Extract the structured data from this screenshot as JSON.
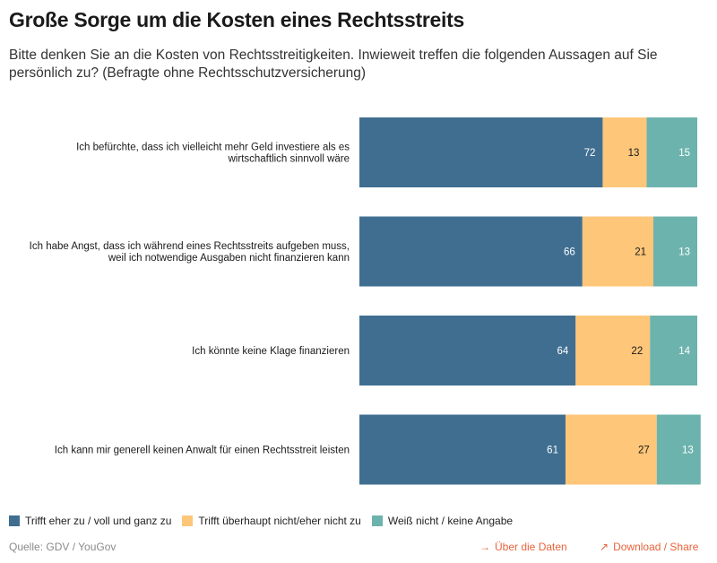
{
  "title": "Große Sorge um die Kosten eines Rechtsstreits",
  "subtitle": "Bitte denken Sie an die Kosten von Rechtsstreitigkeiten. Inwieweit treffen die folgenden Aussagen auf Sie persönlich zu? (Befragte ohne Rechtsschutzversicherung)",
  "source": "Quelle: GDV / YouGov",
  "links": {
    "data_label": "Über die Daten",
    "data_icon": "→",
    "download_label": "Download / Share",
    "download_icon": "↗"
  },
  "colors": {
    "series1": "#3f6e91",
    "series2": "#fdc679",
    "series3": "#6db3ad",
    "link": "#e8643c"
  },
  "chart_data": {
    "type": "bar",
    "orientation": "horizontal",
    "stacked": true,
    "categories": [
      [
        "Ich befürchte, dass ich vielleicht mehr Geld investiere als es",
        "wirtschaftlich sinnvoll wäre"
      ],
      [
        "Ich habe Angst, dass ich während eines Rechtsstreits aufgeben muss,",
        "weil ich notwendige Ausgaben nicht finanzieren kann"
      ],
      [
        "Ich könnte keine Klage finanzieren"
      ],
      [
        "Ich kann mir generell keinen Anwalt für einen Rechtsstreit leisten"
      ]
    ],
    "series": [
      {
        "name": "Trifft eher zu / voll und ganz zu",
        "values": [
          72,
          66,
          64,
          61
        ],
        "color": "#3f6e91",
        "label_color": "#ffffff"
      },
      {
        "name": "Trifft überhaupt nicht/eher nicht zu",
        "values": [
          13,
          21,
          22,
          27
        ],
        "color": "#fdc679",
        "label_color": "#1a1a1a"
      },
      {
        "name": "Weiß nicht / keine Angabe",
        "values": [
          15,
          13,
          14,
          13
        ],
        "color": "#6db3ad",
        "label_color": "#ffffff"
      }
    ],
    "xlim": [
      0,
      100
    ],
    "grid": false,
    "legend_position": "bottom-left"
  }
}
